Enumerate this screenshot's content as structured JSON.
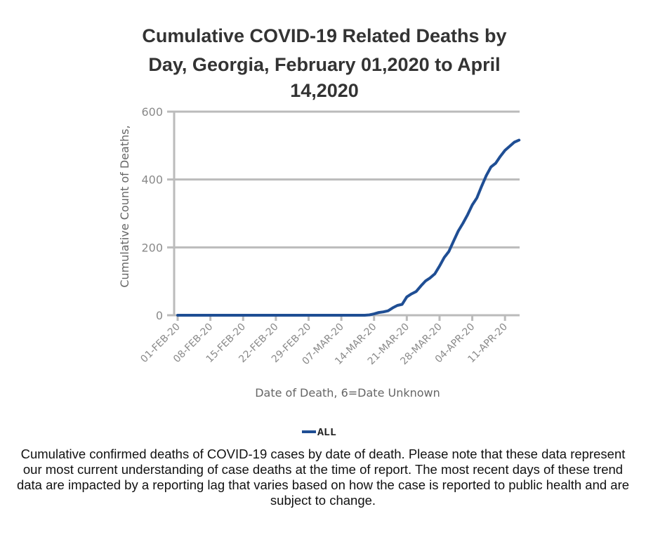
{
  "chart_data": {
    "type": "line",
    "title_lines": [
      "Cumulative COVID-19 Related Deaths by",
      "Day, Georgia,  February 01,2020  to  April",
      "14,2020"
    ],
    "xlabel": "Date of Death, 6=Date Unknown",
    "ylabel": "Cumulative Count of Deaths,",
    "ylim": [
      0,
      600
    ],
    "yticks": [
      0,
      200,
      400,
      600
    ],
    "xtick_labels": [
      "01-FEB-20",
      "08-FEB-20",
      "15-FEB-20",
      "22-FEB-20",
      "29-FEB-20",
      "07-MAR-20",
      "14-MAR-20",
      "21-MAR-20",
      "28-MAR-20",
      "04-APR-20",
      "11-APR-20"
    ],
    "grid": "horizontal",
    "legend_position": "bottom",
    "x": [
      "01-FEB-20",
      "02-FEB-20",
      "03-FEB-20",
      "04-FEB-20",
      "05-FEB-20",
      "06-FEB-20",
      "07-FEB-20",
      "08-FEB-20",
      "09-FEB-20",
      "10-FEB-20",
      "11-FEB-20",
      "12-FEB-20",
      "13-FEB-20",
      "14-FEB-20",
      "15-FEB-20",
      "16-FEB-20",
      "17-FEB-20",
      "18-FEB-20",
      "19-FEB-20",
      "20-FEB-20",
      "21-FEB-20",
      "22-FEB-20",
      "23-FEB-20",
      "24-FEB-20",
      "25-FEB-20",
      "26-FEB-20",
      "27-FEB-20",
      "28-FEB-20",
      "29-FEB-20",
      "01-MAR-20",
      "02-MAR-20",
      "03-MAR-20",
      "04-MAR-20",
      "05-MAR-20",
      "06-MAR-20",
      "07-MAR-20",
      "08-MAR-20",
      "09-MAR-20",
      "10-MAR-20",
      "11-MAR-20",
      "12-MAR-20",
      "13-MAR-20",
      "14-MAR-20",
      "15-MAR-20",
      "16-MAR-20",
      "17-MAR-20",
      "18-MAR-20",
      "19-MAR-20",
      "20-MAR-20",
      "21-MAR-20",
      "22-MAR-20",
      "23-MAR-20",
      "24-MAR-20",
      "25-MAR-20",
      "26-MAR-20",
      "27-MAR-20",
      "28-MAR-20",
      "29-MAR-20",
      "30-MAR-20",
      "31-MAR-20",
      "01-APR-20",
      "02-APR-20",
      "03-APR-20",
      "04-APR-20",
      "05-APR-20",
      "06-APR-20",
      "07-APR-20",
      "08-APR-20",
      "09-APR-20",
      "10-APR-20",
      "11-APR-20",
      "12-APR-20",
      "13-APR-20",
      "14-APR-20"
    ],
    "series": [
      {
        "name": "ALL",
        "color": "#1f4e94",
        "values": [
          0,
          0,
          0,
          0,
          0,
          0,
          0,
          0,
          0,
          0,
          0,
          0,
          0,
          0,
          0,
          0,
          0,
          0,
          0,
          0,
          0,
          0,
          0,
          0,
          0,
          0,
          0,
          0,
          0,
          0,
          0,
          0,
          0,
          0,
          0,
          0,
          0,
          0,
          0,
          0,
          0,
          1,
          4,
          8,
          10,
          13,
          22,
          29,
          32,
          54,
          63,
          70,
          86,
          101,
          110,
          122,
          145,
          170,
          188,
          218,
          248,
          271,
          296,
          325,
          346,
          380,
          412,
          437,
          448,
          468,
          486,
          498,
          510,
          516
        ]
      }
    ]
  },
  "caption": "Cumulative confirmed deaths of COVID-19 cases by date of death. Please note that these data represent our most current understanding of case deaths at the time of report. The most recent days of these trend data are impacted by a reporting lag that varies based on how the case is reported to public health and are subject to change."
}
